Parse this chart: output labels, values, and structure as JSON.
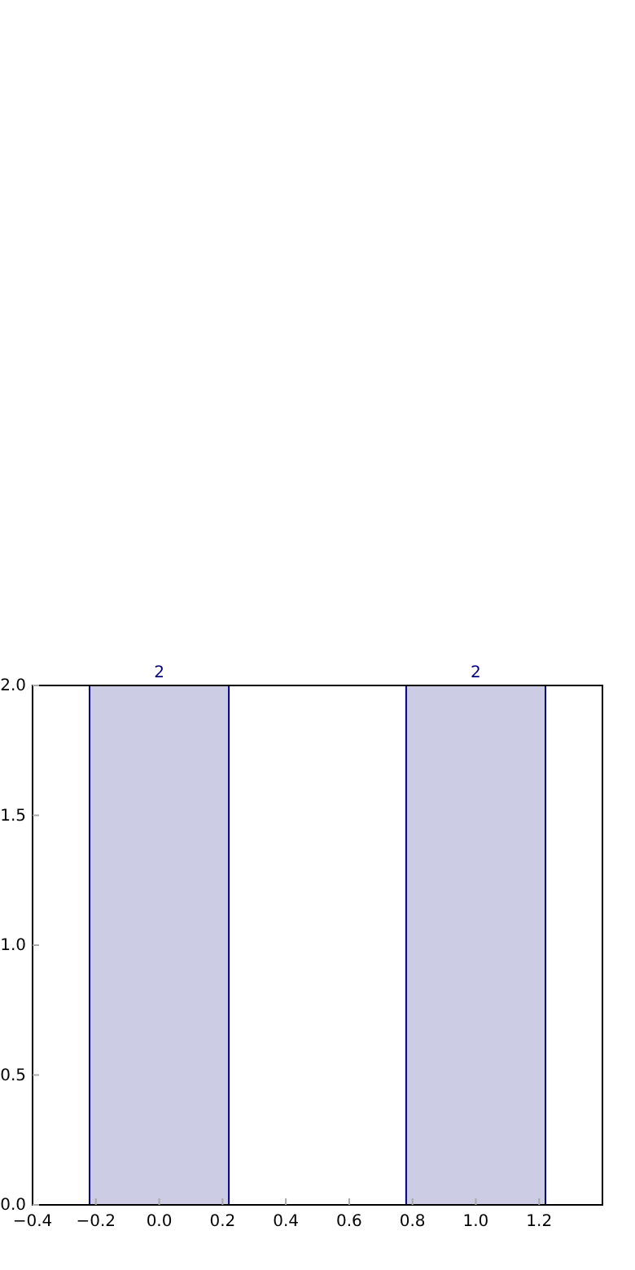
{
  "chart_data": {
    "type": "bar",
    "x": [
      0,
      1
    ],
    "values": [
      2,
      2
    ],
    "color": "#cccce5",
    "data_labels": true,
    "xlim": [
      -0.4,
      1.4
    ],
    "xticks": [
      -0.4,
      -0.2,
      {
        "value": 0,
        "label": "0.0"
      },
      0.2,
      0.4,
      0.6,
      0.8,
      {
        "value": 1,
        "label": "1.0"
      },
      1.2
    ],
    "ylim": [
      0,
      2
    ],
    "yticks": [
      {
        "value": 0,
        "label": "0.0"
      },
      0.5,
      {
        "value": 1,
        "label": "1.0"
      },
      1.5,
      {
        "value": 2,
        "label": "2.0"
      }
    ],
    "grid": false
  }
}
